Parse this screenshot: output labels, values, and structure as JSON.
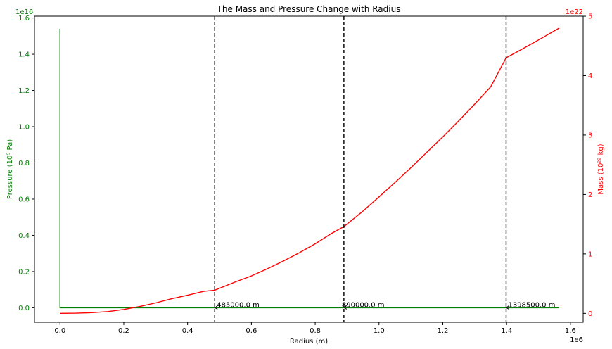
{
  "chart_data": {
    "type": "line",
    "title": "The Mass and Pressure Change with Radius",
    "xlabel": "Radius (m)",
    "x_offset_label": "1e6",
    "x_scale": 1000000,
    "xlim": [
      -80000,
      1640000
    ],
    "x_ticks": [
      0,
      200000,
      400000,
      600000,
      800000,
      1000000,
      1200000,
      1400000,
      1600000
    ],
    "x_tick_labels": [
      "0.0",
      "0.2",
      "0.4",
      "0.6",
      "0.8",
      "1.0",
      "1.2",
      "1.4",
      "1.6"
    ],
    "left_axis": {
      "label": "Pressure (10⁹ Pa)",
      "offset_label": "1e16",
      "scale": 10000000000000000,
      "ylim": [
        -0.08,
        1.61
      ],
      "ticks": [
        0.0,
        0.2,
        0.4,
        0.6,
        0.8,
        1.0,
        1.2,
        1.4,
        1.6
      ],
      "tick_labels": [
        "0.0",
        "0.2",
        "0.4",
        "0.6",
        "0.8",
        "1.0",
        "1.2",
        "1.4",
        "1.6"
      ],
      "color": "#008000"
    },
    "right_axis": {
      "label": "Mass (10²² kg)",
      "offset_label": "1e22",
      "scale": 10000000000000000000000,
      "ylim": [
        -0.15,
        5.0
      ],
      "ticks": [
        0,
        1,
        2,
        3,
        4,
        5
      ],
      "tick_labels": [
        "0",
        "1",
        "2",
        "3",
        "4",
        "5"
      ],
      "color": "#ff0000"
    },
    "series": [
      {
        "axis": "left",
        "color": "#008000",
        "x": [
          0,
          0,
          1000,
          100000,
          485000,
          890000,
          1398500,
          1565000
        ],
        "y": [
          1.54,
          0.0,
          0.0,
          0.0,
          0.0,
          0.0,
          0.0,
          0.0
        ]
      },
      {
        "axis": "right",
        "color": "#ff0000",
        "x": [
          0,
          50000,
          100000,
          150000,
          200000,
          250000,
          300000,
          350000,
          400000,
          450000,
          485000,
          550000,
          600000,
          650000,
          700000,
          750000,
          800000,
          850000,
          890000,
          950000,
          1000000,
          1050000,
          1100000,
          1150000,
          1200000,
          1250000,
          1300000,
          1350000,
          1398500,
          1450000,
          1500000,
          1565000
        ],
        "y": [
          0.0,
          0.003,
          0.012,
          0.03,
          0.065,
          0.115,
          0.175,
          0.245,
          0.305,
          0.37,
          0.39,
          0.53,
          0.63,
          0.75,
          0.88,
          1.02,
          1.17,
          1.34,
          1.46,
          1.72,
          1.96,
          2.2,
          2.45,
          2.71,
          2.97,
          3.24,
          3.52,
          3.81,
          4.3,
          4.45,
          4.6,
          4.8
        ]
      }
    ],
    "vlines": [
      485000,
      890000,
      1398500
    ],
    "annotations": [
      {
        "text": "485000.0 m",
        "x": 485000
      },
      {
        "text": "890000.0 m",
        "x": 890000
      },
      {
        "text": "1398500.0 m",
        "x": 1398500
      }
    ],
    "grid": false,
    "legend": "none"
  }
}
